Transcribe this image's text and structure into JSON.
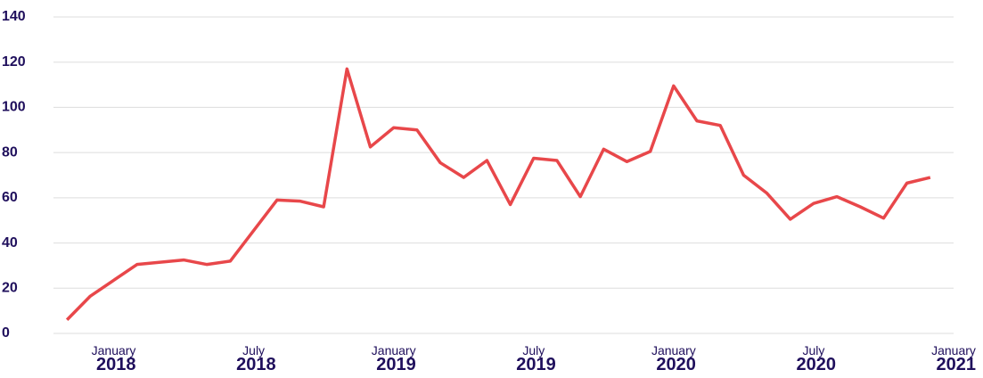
{
  "chart_data": {
    "type": "line",
    "x": [
      "2017-11",
      "2017-12",
      "2018-02",
      "2018-04",
      "2018-05",
      "2018-06",
      "2018-08",
      "2018-09",
      "2018-10",
      "2018-11",
      "2018-12",
      "2019-01",
      "2019-02",
      "2019-03",
      "2019-04",
      "2019-05",
      "2019-06",
      "2019-07",
      "2019-08",
      "2019-09",
      "2019-10",
      "2019-11",
      "2019-12",
      "2020-01",
      "2020-02",
      "2020-03",
      "2020-04",
      "2020-05",
      "2020-06",
      "2020-07",
      "2020-08",
      "2020-09",
      "2020-10",
      "2020-11",
      "2020-12"
    ],
    "series": [
      {
        "color": "#e8474a",
        "values": [
          6,
          16.5,
          30.5,
          32.5,
          30.5,
          32,
          59,
          58.5,
          56,
          117,
          82.5,
          91,
          90,
          75.5,
          69,
          76.5,
          57,
          77.5,
          76.5,
          60.5,
          81.5,
          76,
          80.5,
          109.5,
          94,
          92,
          70,
          62,
          50.5,
          57.5,
          60.5,
          56,
          51,
          66.5,
          69
        ]
      }
    ],
    "xlim": [
      "2017-10",
      "2021-01"
    ],
    "xticks": [
      {
        "value": "2018-01",
        "label": "January 2018"
      },
      {
        "value": "2018-07",
        "label": "July 2018"
      },
      {
        "value": "2019-01",
        "label": "January 2019"
      },
      {
        "value": "2019-07",
        "label": "July 2019"
      },
      {
        "value": "2020-01",
        "label": "January 2020"
      },
      {
        "value": "2020-07",
        "label": "July 2020"
      },
      {
        "value": "2021-01",
        "label": "January 2021"
      }
    ],
    "ylim": [
      0,
      140
    ],
    "yticks": [
      0,
      20,
      40,
      60,
      80,
      100,
      120,
      140
    ],
    "grid": true
  }
}
